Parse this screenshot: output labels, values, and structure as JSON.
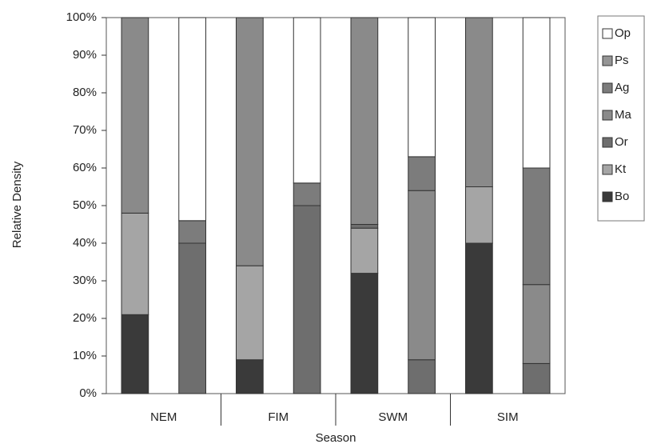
{
  "chart_data": {
    "type": "stacked_bar",
    "ylabel": "Relative Density",
    "xlabel": "Season",
    "categories": [
      null,
      null,
      null,
      null,
      null,
      null,
      null,
      null
    ],
    "groups": [
      "NEM",
      "FIM",
      "SWM",
      "SIM"
    ],
    "ylim": [
      0,
      100
    ],
    "yticks": [
      {
        "value": 0,
        "label": "0%"
      },
      {
        "value": 10,
        "label": "10%"
      },
      {
        "value": 20,
        "label": "20%"
      },
      {
        "value": 30,
        "label": "30%"
      },
      {
        "value": 40,
        "label": "40%"
      },
      {
        "value": 50,
        "label": "50%"
      },
      {
        "value": 60,
        "label": "60%"
      },
      {
        "value": 70,
        "label": "70%"
      },
      {
        "value": 80,
        "label": "80%"
      },
      {
        "value": 90,
        "label": "90%"
      },
      {
        "value": 100,
        "label": "100%"
      }
    ],
    "series": [
      {
        "name": "Bo",
        "color": "#3a3a3a",
        "values": [
          21,
          0,
          9,
          0,
          32,
          0,
          40,
          0
        ]
      },
      {
        "name": "Kt",
        "color": "#a5a5a5",
        "values": [
          27,
          0,
          25,
          0,
          12,
          0,
          15,
          0
        ]
      },
      {
        "name": "Or",
        "color": "#6e6e6e",
        "values": [
          0,
          40,
          0,
          50,
          1,
          9,
          0,
          8
        ]
      },
      {
        "name": "Ma",
        "color": "#8a8a8a",
        "values": [
          52,
          0,
          66,
          0,
          55,
          45,
          45,
          21
        ]
      },
      {
        "name": "Ag",
        "color": "#7c7c7c",
        "values": [
          0,
          6,
          0,
          6,
          0,
          9,
          0,
          31
        ]
      },
      {
        "name": "Ps",
        "color": "#959595",
        "values": [
          0,
          0,
          0,
          0,
          0,
          0,
          0,
          0
        ]
      },
      {
        "name": "Op",
        "color": "#ffffff",
        "values": [
          0,
          54,
          0,
          44,
          0,
          37,
          0,
          40
        ]
      }
    ]
  }
}
